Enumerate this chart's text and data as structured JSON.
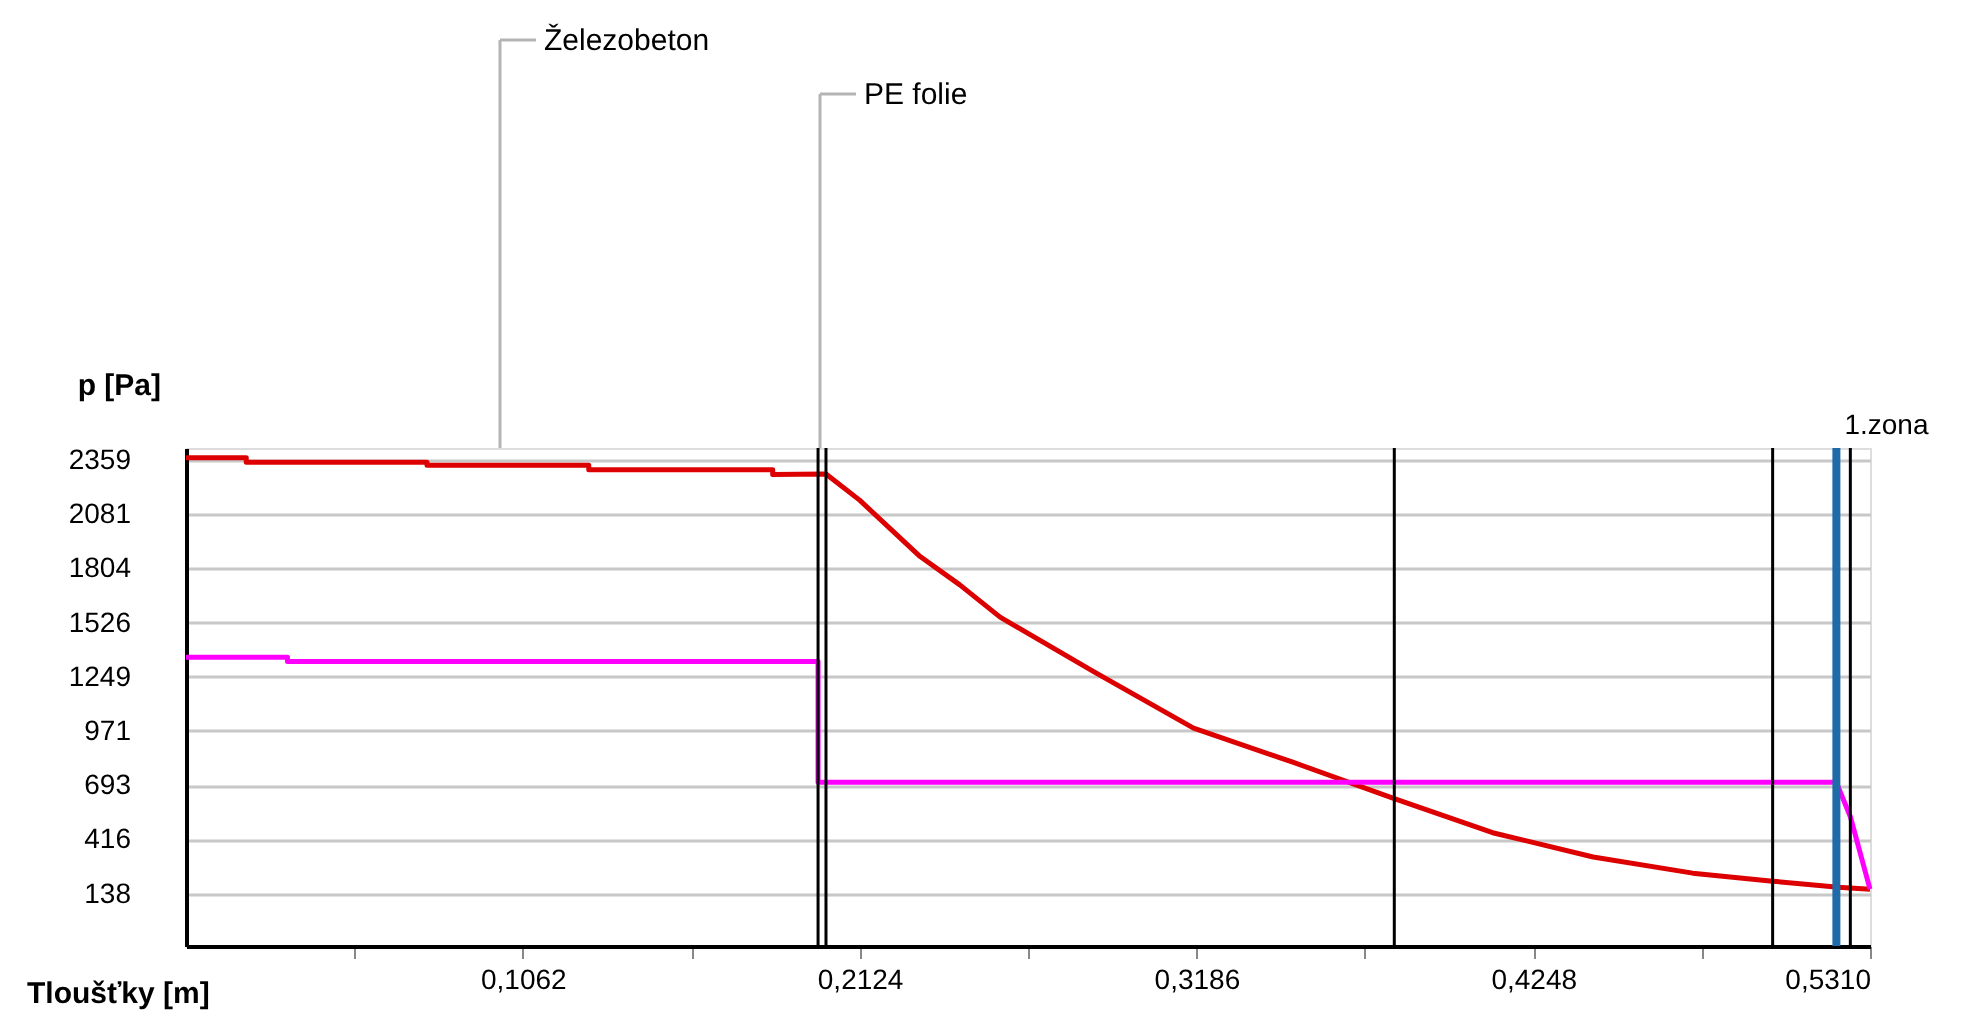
{
  "chart_data": {
    "type": "line",
    "xlabel": "Tloušťky [m]",
    "ylabel": "p [Pa]",
    "xlim": [
      0,
      0.531
    ],
    "ylim": [
      -130,
      2420
    ],
    "xticks": [
      {
        "value": 0.0531,
        "label": null
      },
      {
        "value": 0.1062,
        "label": "0,1062"
      },
      {
        "value": 0.1593,
        "label": null
      },
      {
        "value": 0.2124,
        "label": "0,2124"
      },
      {
        "value": 0.2655,
        "label": null
      },
      {
        "value": 0.3186,
        "label": "0,3186"
      },
      {
        "value": 0.3717,
        "label": null
      },
      {
        "value": 0.4248,
        "label": "0,4248"
      },
      {
        "value": 0.4779,
        "label": null
      },
      {
        "value": 0.531,
        "label": "0,5310"
      }
    ],
    "yticks": [
      138,
      416,
      693,
      971,
      1249,
      1526,
      1804,
      2081,
      2359
    ],
    "grid": "y",
    "marker": "none",
    "line_style": "solid",
    "series": [
      {
        "color": "#dd0000",
        "x": [
          0,
          0.019,
          0.019,
          0.076,
          0.076,
          0.127,
          0.127,
          0.185,
          0.185,
          0.2018,
          0.2124,
          0.2315,
          0.244,
          0.2567,
          0.2862,
          0.3177,
          0.349,
          0.381,
          0.412,
          0.4437,
          0.4751,
          0.5003,
          0.521,
          0.531
        ],
        "values": [
          2370,
          2370,
          2347,
          2347,
          2332,
          2332,
          2308,
          2308,
          2284,
          2287,
          2153,
          1864,
          1719,
          1554,
          1275,
          986,
          811,
          625,
          450,
          326,
          243,
          202,
          171,
          161
        ]
      },
      {
        "color": "#ff00ff",
        "x": [
          0,
          0.032,
          0.032,
          0.1993,
          0.1993,
          0.5204,
          0.5248,
          0.531
        ],
        "values": [
          1348,
          1348,
          1327,
          1327,
          708,
          708,
          532,
          161
        ]
      }
    ],
    "ref_lines": [
      {
        "axis": "x",
        "value": 0.1993,
        "color": "#000000"
      },
      {
        "axis": "x",
        "value": 0.2018,
        "color": "#000000"
      },
      {
        "axis": "x",
        "value": 0.381,
        "color": "#000000"
      },
      {
        "axis": "x",
        "value": 0.5003,
        "color": "#000000"
      },
      {
        "axis": "x",
        "value": 0.5204,
        "color": "#1f6aa8",
        "label": "1.zona"
      },
      {
        "axis": "x",
        "value": 0.5248,
        "color": "#000000"
      }
    ],
    "annotations": [
      "Železobeton",
      "PE folie"
    ]
  }
}
